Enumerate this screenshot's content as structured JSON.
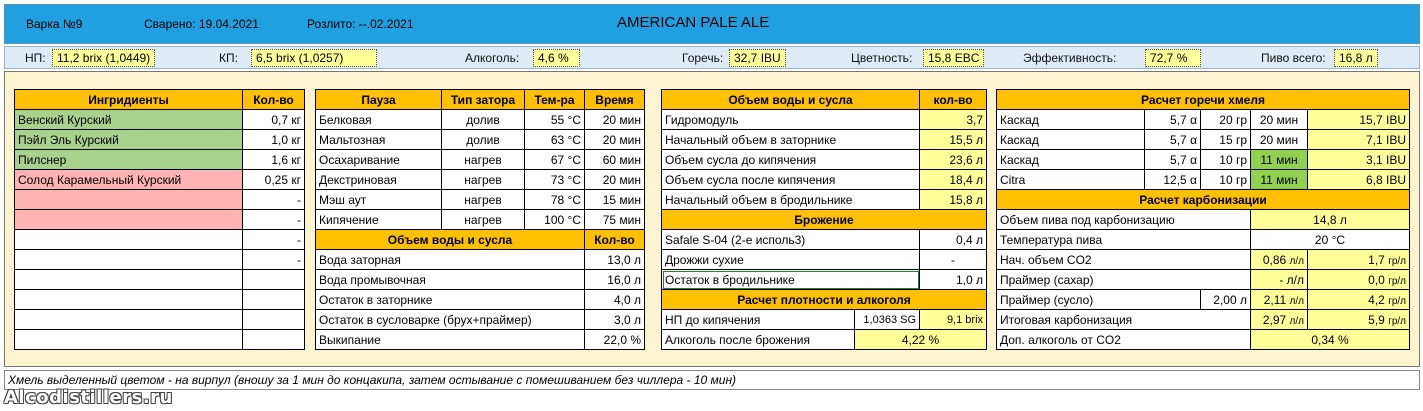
{
  "header": {
    "batch": "Варка №9",
    "brewed": "Сварено: 19.04.2021",
    "bottled": "Розлито: --.02.2021",
    "title": "AMERICAN PALE ALE"
  },
  "summary": {
    "og_label": "НП:",
    "og_value": "11,2 brix  (1,0449)",
    "fg_label": "КП:",
    "fg_value": "6,5 brix (1,0257)",
    "abv_label": "Алкоголь:",
    "abv_value": "4,6 %",
    "ibu_label": "Горечь:",
    "ibu_value": "32,7 IBU",
    "ebc_label": "Цветность:",
    "ebc_value": "15,8 EBC",
    "eff_label": "Эффективность:",
    "eff_value": "72,7 %",
    "total_label": "Пиво всего:",
    "total_value": "16,8 л"
  },
  "ingredients": {
    "headers": [
      "Ингридиенты",
      "Кол-во"
    ],
    "rows": [
      [
        "Венский Курский",
        "0,7 кг"
      ],
      [
        "Пэйл Эль Курский",
        "1,0 кг"
      ],
      [
        "Пилснер",
        "1,6 кг"
      ],
      [
        "Солод Карамельный Курский",
        "0,25 кг"
      ],
      [
        "",
        "-"
      ],
      [
        "",
        "-"
      ],
      [
        "",
        "-"
      ],
      [
        "",
        "-"
      ],
      [
        "",
        ""
      ],
      [
        "",
        ""
      ],
      [
        "",
        ""
      ],
      [
        "",
        ""
      ]
    ]
  },
  "mash": {
    "headers": [
      "Пауза",
      "Тип затора",
      "Тем-ра",
      "Время"
    ],
    "rows": [
      [
        "Белковая",
        "долив",
        "55 °C",
        "20 мин"
      ],
      [
        "Мальтозная",
        "долив",
        "63 °C",
        "20 мин"
      ],
      [
        "Осахаривание",
        "нагрев",
        "67 °C",
        "60 мин"
      ],
      [
        "Декстриновая",
        "нагрев",
        "73 °C",
        "20 мин"
      ],
      [
        "Мэш аут",
        "нагрев",
        "78 °C",
        "15 мин"
      ],
      [
        "Кипячение",
        "нагрев",
        "100 °C",
        "75 мин"
      ]
    ]
  },
  "water_left": {
    "headers": [
      "Объем воды и сусла",
      "Кол-во"
    ],
    "rows": [
      [
        "Вода заторная",
        "13,0 л"
      ],
      [
        "Вода промывочная",
        "16,0 л"
      ],
      [
        "Остаток в заторнике",
        "4,0 л"
      ],
      [
        "Остаток в сусловарке (брух+праймер)",
        "3,0 л"
      ],
      [
        "Выкипание",
        "22,0 %"
      ]
    ]
  },
  "water_right": {
    "headers": [
      "Объем воды и сусла",
      "кол-во"
    ],
    "rows": [
      [
        "Гидромодуль",
        "3,7"
      ],
      [
        "Начальный объем в заторнике",
        "15,5 л"
      ],
      [
        "Объем сусла до кипячения",
        "23,6 л"
      ],
      [
        "Объем сусла после кипячения",
        "18,4 л"
      ],
      [
        "Начальный объем в бродильнике",
        "15,8 л"
      ]
    ]
  },
  "fermentation": {
    "header": "Брожение",
    "rows": [
      [
        "Safale S-04 (2-е исполь3)",
        "0,4 л"
      ],
      [
        "Дрожжи сухие",
        "-"
      ],
      [
        "Остаток в бродильнике",
        "1,0 л"
      ]
    ]
  },
  "gravity": {
    "header": "Расчет плотности и алкоголя",
    "og_label": "НП до кипячения",
    "og_sg": "1,0363 SG",
    "og_brix": "9,1 brix",
    "abv_label": "Алкоголь после брожения",
    "abv_value": "4,22 %"
  },
  "hops": {
    "header": "Расчет горечи хмеля",
    "rows": [
      [
        "Каскад",
        "5,7 α",
        "20 гр",
        "20 мин",
        "15,7 IBU"
      ],
      [
        "Каскад",
        "5,7 α",
        "15 гр",
        "20 мин",
        "7,1 IBU"
      ],
      [
        "Каскад",
        "5,7 α",
        "10 гр",
        "11 мин",
        "3,1 IBU"
      ],
      [
        "Citra",
        "12,5 α",
        "10 гр",
        "11 мин",
        "6,8 IBU"
      ]
    ]
  },
  "carbonation": {
    "header": "Расчет карбонизации",
    "beer_volume_label": "Объем пива под карбонизацию",
    "beer_volume": "14,8 л",
    "temp_label": "Температура пива",
    "temp": "20 °C",
    "co2_label": "Нач. объем CO2",
    "co2_v": "0,86",
    "co2_g": "1,7",
    "sugar_label": "Праймер (сахар)",
    "sugar_v": "- л/л",
    "sugar_g": "0,0",
    "wort_label": "Праймер (сусло)",
    "wort_volume": "2,00 л",
    "wort_v": "2,11",
    "wort_g": "4,2",
    "total_label": "Итоговая карбонизация",
    "total_v": "2,97",
    "total_g": "5,9",
    "abv_label": "Доп. алкоголь от CO2",
    "abv": "0,34 %",
    "unit_ll": "л/л",
    "unit_gl": "гр/л"
  },
  "footer": {
    "note": "Хмель выделенный цветом - на вирпул (вношу за 1 мин до концакипа, затем остывание с помешиванием без чиллера - 10 мин)",
    "logo": "Alcodistillers.ru"
  }
}
